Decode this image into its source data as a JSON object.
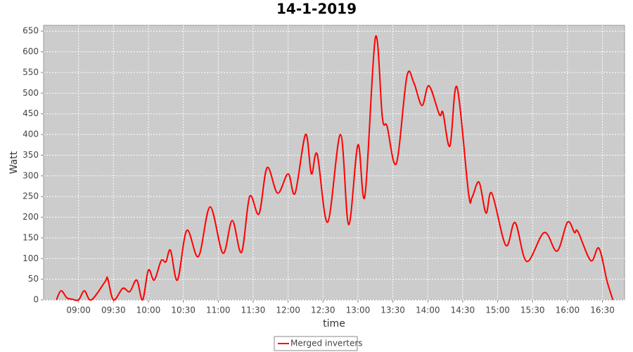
{
  "chart_data": {
    "type": "line",
    "title": "14-1-2019",
    "x_label": "time",
    "y_label": "Watt",
    "x": [
      "08:41",
      "08:45",
      "08:50",
      "08:54",
      "09:00",
      "09:05",
      "09:11",
      "09:23",
      "09:25",
      "09:30",
      "09:38",
      "09:44",
      "09:50",
      "09:55",
      "10:00",
      "10:05",
      "10:11",
      "10:15",
      "10:19",
      "10:25",
      "10:33",
      "10:43",
      "10:53",
      "11:04",
      "11:12",
      "11:20",
      "11:27",
      "11:35",
      "11:42",
      "11:51",
      "12:00",
      "12:06",
      "12:15",
      "12:20",
      "12:25",
      "12:34",
      "12:45",
      "12:52",
      "13:00",
      "13:06",
      "13:15",
      "13:21",
      "13:25",
      "13:33",
      "13:42",
      "13:48",
      "13:55",
      "14:01",
      "14:10",
      "14:13",
      "14:19",
      "14:25",
      "14:35",
      "14:38",
      "14:44",
      "14:50",
      "14:55",
      "15:07",
      "15:15",
      "15:25",
      "15:40",
      "15:51",
      "16:00",
      "16:06",
      "16:09",
      "16:20",
      "16:27",
      "16:34",
      "16:39"
    ],
    "series": [
      {
        "name": "Merged inverters",
        "color": "#ff0000",
        "values": [
          0,
          22,
          5,
          2,
          0,
          22,
          0,
          45,
          52,
          0,
          28,
          20,
          48,
          0,
          72,
          48,
          95,
          92,
          120,
          48,
          168,
          105,
          225,
          113,
          192,
          115,
          250,
          208,
          320,
          258,
          305,
          258,
          400,
          305,
          352,
          188,
          400,
          182,
          375,
          252,
          635,
          440,
          420,
          330,
          540,
          525,
          470,
          518,
          448,
          453,
          372,
          515,
          258,
          248,
          285,
          210,
          258,
          132,
          187,
          93,
          163,
          118,
          188,
          163,
          165,
          95,
          125,
          45,
          0
        ]
      }
    ],
    "xlim": [
      "08:30",
      "16:49"
    ],
    "xticks": [
      "09:00",
      "09:30",
      "10:00",
      "10:30",
      "11:00",
      "11:30",
      "12:00",
      "12:30",
      "13:00",
      "13:30",
      "14:00",
      "14:30",
      "15:00",
      "15:30",
      "16:00",
      "16:30"
    ],
    "ylim": [
      0,
      664
    ],
    "yticks": [
      0,
      50,
      100,
      150,
      200,
      250,
      300,
      350,
      400,
      450,
      500,
      550,
      600,
      650
    ],
    "grid": true,
    "legend": "bottom"
  }
}
